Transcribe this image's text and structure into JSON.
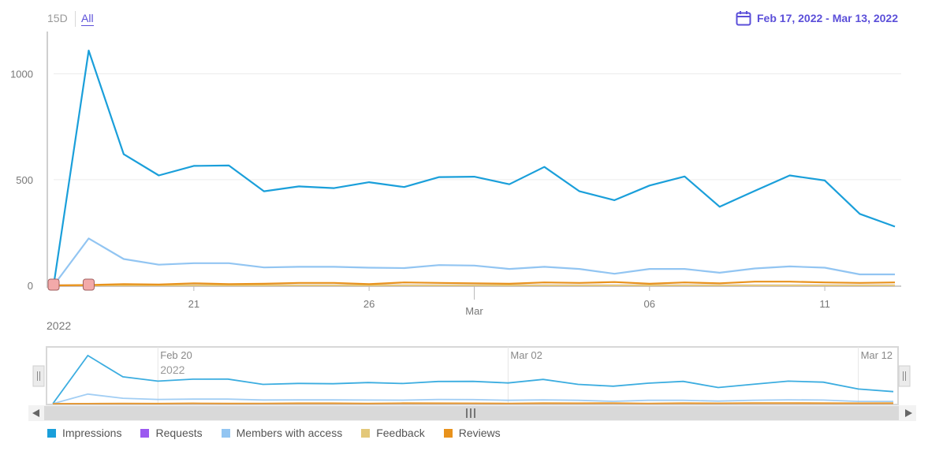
{
  "range_buttons": {
    "short": "15D",
    "all": "All"
  },
  "date_range": "Feb 17, 2022 - Mar 13, 2022",
  "colors": {
    "accent": "#5b4fd9",
    "impressions": "#1a9fda",
    "requests": "#9b59f0",
    "members": "#92c5f2",
    "feedback": "#e3c87a",
    "reviews": "#e8921c",
    "marker": "#f2a9a9"
  },
  "chart_data": {
    "type": "line",
    "x": [
      "2022-02-17",
      "2022-02-18",
      "2022-02-19",
      "2022-02-20",
      "2022-02-21",
      "2022-02-22",
      "2022-02-23",
      "2022-02-24",
      "2022-02-25",
      "2022-02-26",
      "2022-02-27",
      "2022-02-28",
      "2022-03-01",
      "2022-03-02",
      "2022-03-03",
      "2022-03-04",
      "2022-03-05",
      "2022-03-06",
      "2022-03-07",
      "2022-03-08",
      "2022-03-09",
      "2022-03-10",
      "2022-03-11",
      "2022-03-12",
      "2022-03-13"
    ],
    "series": [
      {
        "name": "Impressions",
        "values": [
          0,
          1110,
          620,
          520,
          565,
          567,
          445,
          468,
          460,
          488,
          465,
          512,
          514,
          478,
          560,
          445,
          403,
          472,
          515,
          372,
          447,
          520,
          496,
          338,
          278
        ]
      },
      {
        "name": "Requests",
        "values": [
          0,
          0,
          0,
          0,
          0,
          0,
          0,
          0,
          0,
          0,
          0,
          0,
          0,
          0,
          0,
          0,
          0,
          0,
          0,
          0,
          0,
          0,
          0,
          0,
          0
        ]
      },
      {
        "name": "Members with access",
        "values": [
          0,
          222,
          125,
          98,
          105,
          105,
          85,
          88,
          88,
          84,
          82,
          96,
          94,
          78,
          88,
          78,
          55,
          78,
          78,
          60,
          80,
          90,
          84,
          52,
          52
        ]
      },
      {
        "name": "Feedback",
        "values": [
          0,
          0,
          0,
          0,
          0,
          0,
          0,
          0,
          0,
          0,
          0,
          0,
          0,
          0,
          0,
          0,
          0,
          0,
          0,
          0,
          0,
          0,
          0,
          0,
          0
        ]
      },
      {
        "name": "Reviews",
        "values": [
          0,
          2,
          6,
          4,
          10,
          6,
          8,
          12,
          12,
          6,
          14,
          12,
          10,
          8,
          14,
          12,
          16,
          8,
          14,
          10,
          18,
          18,
          14,
          12,
          14
        ]
      }
    ],
    "y_ticks": [
      "0",
      "500",
      "1000"
    ],
    "ylim": [
      0,
      1200
    ],
    "x_ticks": [
      "21",
      "26",
      "Mar",
      "06",
      "11"
    ],
    "year_label": "2022",
    "navigator_labels": [
      "Feb 20",
      "2022",
      "Mar 02",
      "Mar 12"
    ],
    "markers": [
      "2022-02-17",
      "2022-02-18"
    ],
    "grid": true,
    "legend_position": "bottom-left"
  }
}
